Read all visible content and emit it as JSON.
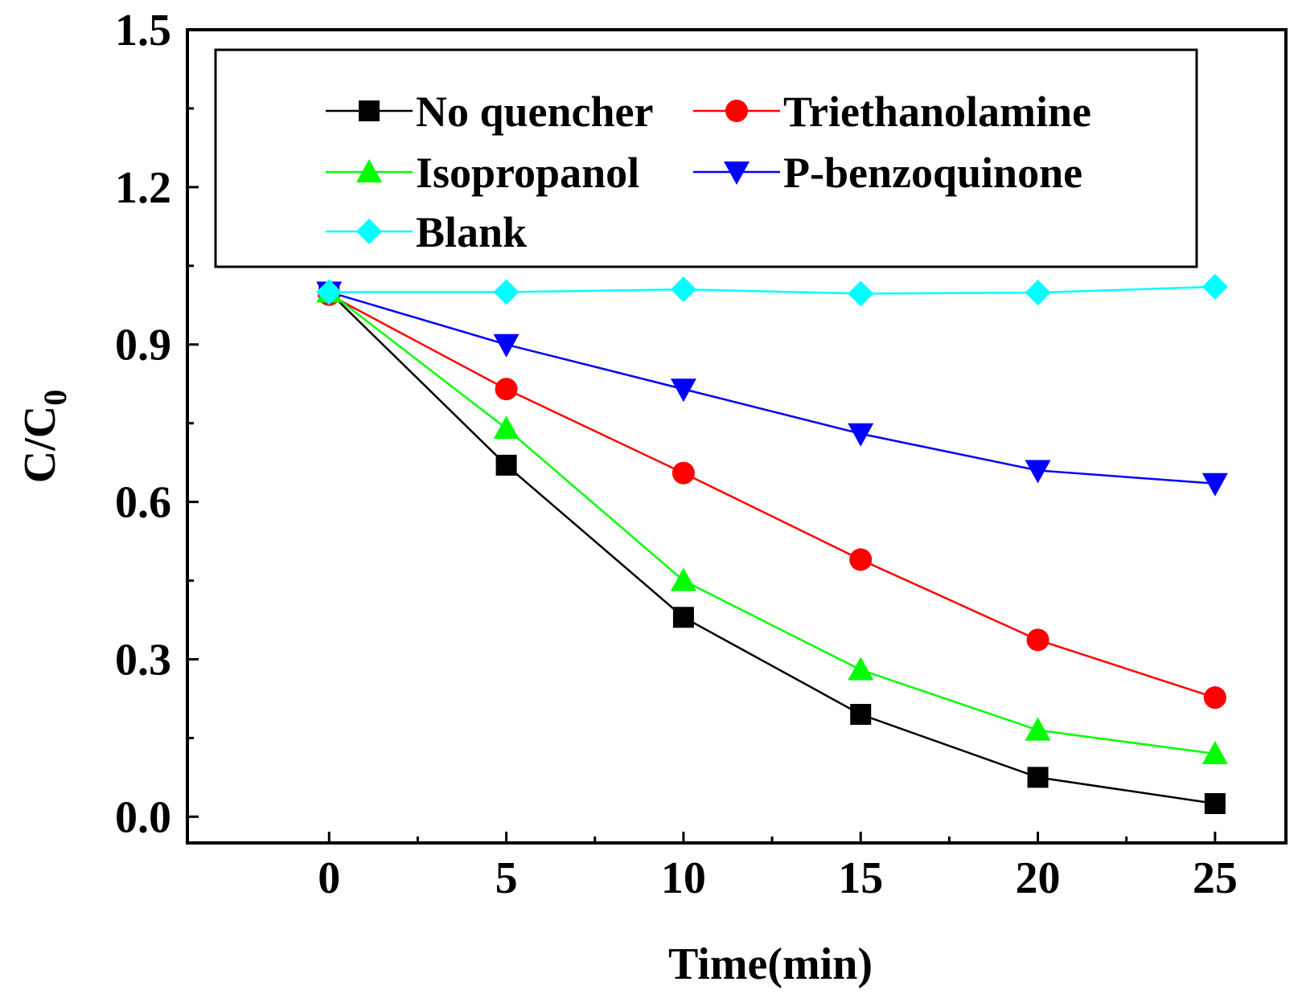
{
  "chart_data": {
    "type": "line",
    "xlabel": "Time(min)",
    "ylabel_main": "C/C",
    "ylabel_sub": "0",
    "xlim": [
      -4,
      27
    ],
    "ylim": [
      -0.05,
      1.5
    ],
    "x_ticks": [
      "0",
      "5",
      "10",
      "15",
      "20",
      "25"
    ],
    "y_ticks": [
      "0.0",
      "0.3",
      "0.6",
      "0.9",
      "1.2",
      "1.5"
    ],
    "grid": false,
    "legend_position": "top",
    "x": [
      0,
      5,
      10,
      15,
      20,
      25
    ],
    "series": [
      {
        "name": "No quencher",
        "color": "#000000",
        "marker": "square",
        "values": [
          1.0,
          0.67,
          0.38,
          0.195,
          0.075,
          0.025
        ]
      },
      {
        "name": "Triethanolamine",
        "color": "#ff0000",
        "marker": "circle",
        "values": [
          0.995,
          0.815,
          0.655,
          0.49,
          0.337,
          0.227
        ]
      },
      {
        "name": "Isopropanol",
        "color": "#00ff00",
        "marker": "triangle-up",
        "values": [
          1.0,
          0.74,
          0.45,
          0.28,
          0.165,
          0.12
        ]
      },
      {
        "name": "P-benzoquinone",
        "color": "#0000ff",
        "marker": "triangle-down",
        "values": [
          1.0,
          0.9,
          0.815,
          0.73,
          0.66,
          0.635
        ]
      },
      {
        "name": "Blank",
        "color": "#00ffff",
        "marker": "diamond",
        "values": [
          1.0,
          1.0,
          1.005,
          0.997,
          0.999,
          1.01
        ]
      }
    ]
  }
}
